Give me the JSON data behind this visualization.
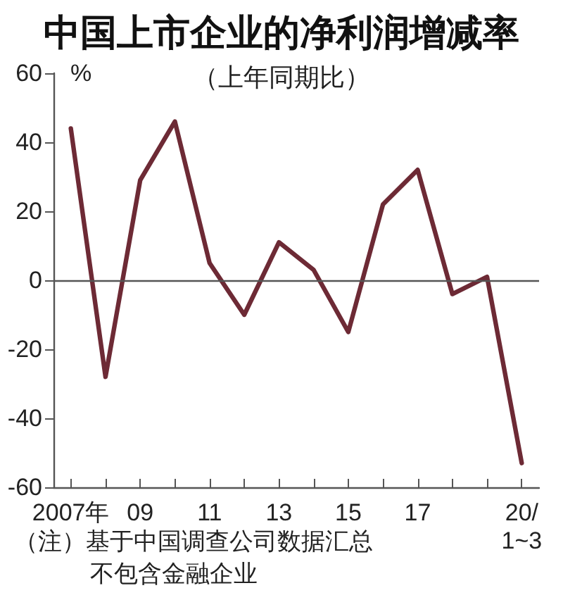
{
  "chart_data": {
    "type": "line",
    "title": "中国上市企业的净利润增减率",
    "subtitle": "（上年同期比）",
    "ylabel": "%",
    "categories": [
      "2007年",
      null,
      "09",
      null,
      "11",
      null,
      "13",
      null,
      "15",
      null,
      "17",
      null,
      null,
      "20/\n1~3"
    ],
    "values": [
      44,
      -28,
      29,
      46,
      5,
      -10,
      11,
      3,
      -15,
      22,
      32,
      -4,
      1,
      -53
    ],
    "color": "#6d2a35",
    "ylim": [
      -60,
      60
    ],
    "yticks": [
      -60,
      -40,
      -20,
      0,
      20,
      40,
      60
    ],
    "marker": "none",
    "ref_lines": [
      {
        "axis": "y",
        "value": 0,
        "color": "#555555"
      }
    ],
    "annotations": [
      "（注）基于中国调查公司数据汇总",
      "不包含金融企业"
    ]
  }
}
